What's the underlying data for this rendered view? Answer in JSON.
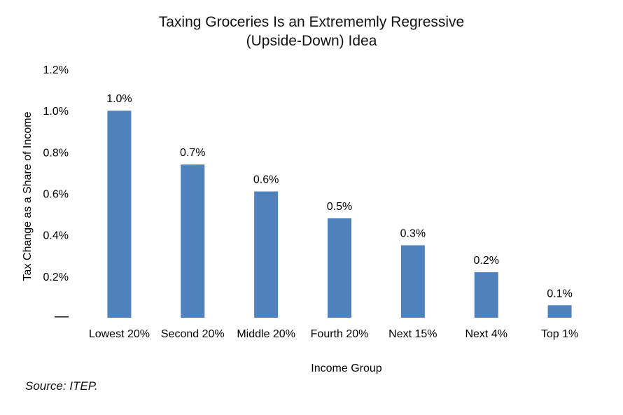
{
  "chart_data": {
    "type": "bar",
    "title": [
      "Taxing Groceries Is an Extrememly Regressive",
      "(Upside-Down) Idea"
    ],
    "xlabel": "Income Group",
    "ylabel": "Tax Change as a Share of Income",
    "categories": [
      "Lowest 20%",
      "Second 20%",
      "Middle 20%",
      "Fourth 20%",
      "Next 15%",
      "Next 4%",
      "Top 1%"
    ],
    "values": [
      1.0,
      0.74,
      0.61,
      0.48,
      0.35,
      0.22,
      0.06
    ],
    "data_labels": [
      "1.0%",
      "0.7%",
      "0.6%",
      "0.5%",
      "0.3%",
      "0.2%",
      "0.1%"
    ],
    "yticks": [
      0,
      0.2,
      0.4,
      0.6,
      0.8,
      1.0,
      1.2
    ],
    "ytick_labels": [
      "—",
      "0.2%",
      "0.4%",
      "0.6%",
      "0.8%",
      "1.0%",
      "1.2%"
    ],
    "ylim": [
      0,
      1.2
    ],
    "grid": false,
    "legend": "none",
    "bar_color": "#4F81BD"
  },
  "source": "Source: ITEP."
}
